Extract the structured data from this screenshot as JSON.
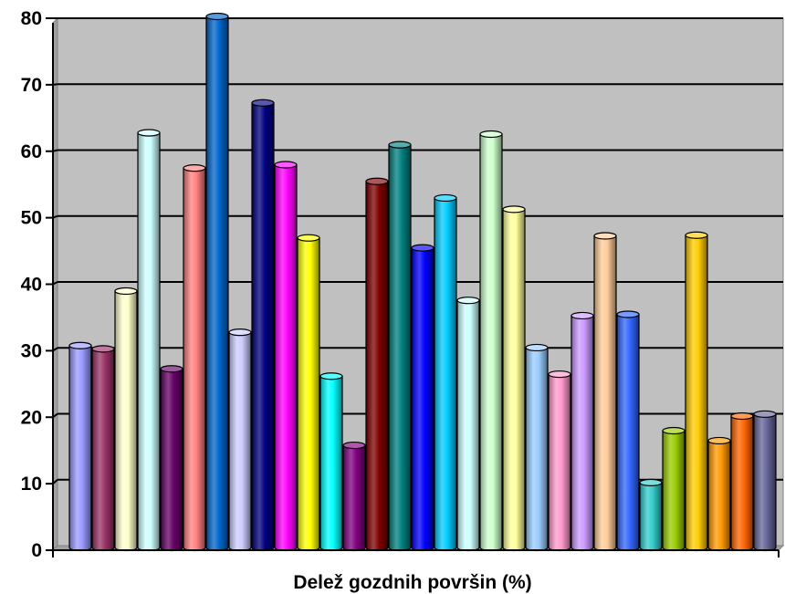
{
  "chart_data": {
    "type": "bar",
    "style": "3d-cylinder",
    "title": "",
    "xlabel": "Delež gozdnih površin (%)",
    "ylabel": "",
    "ylim": [
      0,
      80
    ],
    "yticks": [
      0,
      10,
      20,
      30,
      40,
      50,
      60,
      70,
      80
    ],
    "ytick_labels": [
      "0",
      "10",
      "20",
      "30",
      "40",
      "50",
      "60",
      "70",
      "80"
    ],
    "grid": true,
    "legend": "none",
    "background_color": "#c0c0c0",
    "values": [
      30.5,
      30,
      38.7,
      62.5,
      27,
      57.2,
      80,
      32.5,
      67,
      57.7,
      46.7,
      25.9,
      15.5,
      55.2,
      60.7,
      45.2,
      52.7,
      37.3,
      62.3,
      51,
      30.2,
      26.2,
      35,
      47,
      35.2,
      9.9,
      17.7,
      47.1,
      16.2,
      19.9,
      20.2
    ],
    "colors": [
      "#9999ff",
      "#993366",
      "#ffffcc",
      "#ccffff",
      "#660066",
      "#ff8080",
      "#0066cc",
      "#ccccff",
      "#000080",
      "#ff00ff",
      "#ffff00",
      "#00ffff",
      "#800080",
      "#800000",
      "#008080",
      "#0000ff",
      "#00ccff",
      "#ccffff",
      "#ccffcc",
      "#ffff99",
      "#99ccff",
      "#ff99cc",
      "#cc99ff",
      "#ffcc99",
      "#3366ff",
      "#33cccc",
      "#99cc00",
      "#ffcc00",
      "#ff9900",
      "#ff6600",
      "#666699"
    ]
  }
}
